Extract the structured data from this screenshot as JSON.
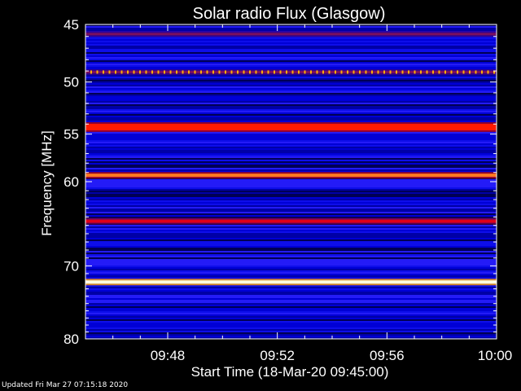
{
  "updated_text": "Updated Fri Mar 27 07:15:18 2020",
  "chart_data": {
    "type": "heatmap",
    "title": "Solar radio Flux (Glasgow)",
    "xlabel": "Start Time (18-Mar-20 09:45:00)",
    "ylabel": "Frequency [MHz]",
    "x_unit": "minutes after 09:45",
    "xlim": [
      0,
      15
    ],
    "ylim": [
      80,
      45
    ],
    "y_scale": "log",
    "x_ticks": [
      {
        "value": 3,
        "label": "09:48"
      },
      {
        "value": 7,
        "label": "09:52"
      },
      {
        "value": 11,
        "label": "09:56"
      },
      {
        "value": 15,
        "label": "10:00"
      }
    ],
    "y_ticks": [
      {
        "value": 45,
        "label": "45"
      },
      {
        "value": 50,
        "label": "50"
      },
      {
        "value": 55,
        "label": "55"
      },
      {
        "value": 60,
        "label": "60"
      },
      {
        "value": 70,
        "label": "70"
      },
      {
        "value": 80,
        "label": "80"
      }
    ],
    "emission_bands": [
      {
        "freq_mhz": 45.8,
        "intensity": 0.55
      },
      {
        "freq_mhz": 49.1,
        "intensity": 0.62
      },
      {
        "freq_mhz": 54.3,
        "intensity": 0.9
      },
      {
        "freq_mhz": 59.3,
        "intensity": 0.95
      },
      {
        "freq_mhz": 64.5,
        "intensity": 0.85
      },
      {
        "freq_mhz": 72.1,
        "intensity": 1.0
      }
    ],
    "colors": {
      "background": "#000000",
      "low": "#0000c8",
      "mid": "#c80000",
      "high": "#ffffe0"
    }
  }
}
